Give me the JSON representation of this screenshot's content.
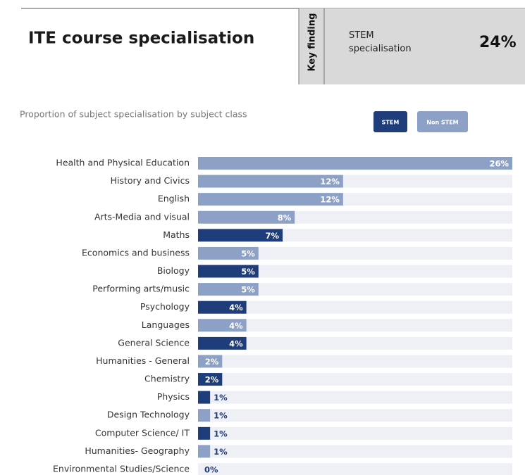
{
  "chart_data": {
    "type": "bar",
    "orientation": "horizontal",
    "title": "ITE course specialisation",
    "key_finding": {
      "heading": "Key finding",
      "label": "STEM specialisation",
      "value_label": "24%"
    },
    "subtitle": "Proportion of subject specialisation by subject class",
    "categories": [
      "Health and Physical Education",
      "History and Civics",
      "English",
      "Arts-Media and visual",
      "Maths",
      "Economics and business",
      "Biology",
      "Performing arts/music",
      "Psychology",
      "Languages",
      "General Science",
      "Humanities - General",
      "Chemistry",
      "Physics",
      "Design Technology",
      "Computer Science/ IT",
      "Humanities- Geography",
      "Environmental Studies/Science"
    ],
    "series": [
      {
        "name": "STEM",
        "color": "#1f3d7a",
        "values": [
          null,
          null,
          null,
          null,
          7,
          null,
          5,
          null,
          4,
          null,
          4,
          null,
          2,
          1,
          null,
          1,
          null,
          0
        ],
        "value_labels": [
          null,
          null,
          null,
          null,
          "7%",
          null,
          "5%",
          null,
          "4%",
          null,
          "4%",
          null,
          "2%",
          "1%",
          null,
          "1%",
          null,
          "0%"
        ]
      },
      {
        "name": "Non STEM",
        "color": "#8da1c6",
        "values": [
          26,
          12,
          12,
          8,
          null,
          5,
          null,
          5,
          null,
          4,
          null,
          2,
          null,
          null,
          1,
          null,
          1,
          null
        ],
        "value_labels": [
          "26%",
          "12%",
          "12%",
          "8%",
          null,
          "5%",
          null,
          "5%",
          null,
          "4%",
          null,
          "2%",
          null,
          null,
          "1%",
          null,
          "1%",
          null
        ]
      }
    ],
    "xlim": [
      0,
      26
    ],
    "legend": "top-right"
  }
}
